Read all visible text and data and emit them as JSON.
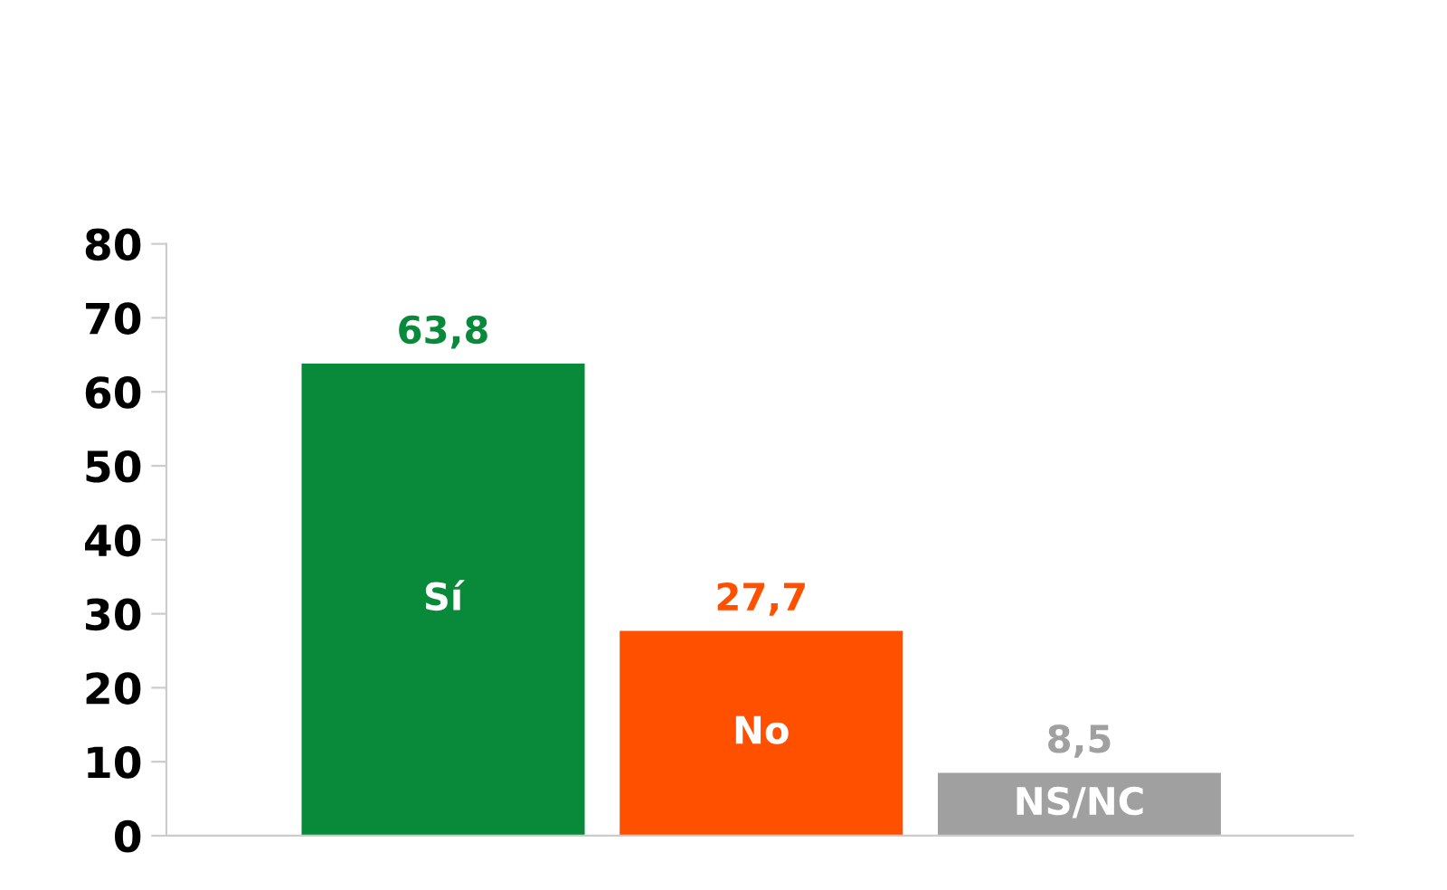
{
  "chart_data": {
    "type": "bar",
    "categories": [
      "Sí",
      "No",
      "NS/NC"
    ],
    "values": [
      63.8,
      27.7,
      8.5
    ],
    "colors": [
      "#098a3a",
      "#ff5000",
      "#a0a0a0"
    ],
    "value_labels": [
      "63,8",
      "27,7",
      "8,5"
    ],
    "ylim": [
      0,
      80
    ],
    "yticks": [
      0,
      10,
      20,
      30,
      40,
      50,
      60,
      70,
      80
    ],
    "grid": false,
    "legend": false,
    "tick_labels": "y"
  }
}
